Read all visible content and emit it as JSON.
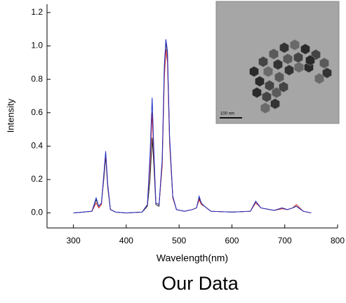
{
  "chart_data": {
    "type": "line",
    "x_label": "Wavelength(nm)",
    "y_label": "Intensity",
    "x": [
      300,
      335,
      343,
      348,
      353,
      358,
      361,
      365,
      370,
      380,
      400,
      430,
      440,
      445,
      449,
      452,
      456,
      462,
      468,
      472,
      475,
      478,
      482,
      488,
      495,
      510,
      525,
      533,
      538,
      542,
      548,
      560,
      600,
      635,
      645,
      655,
      680,
      695,
      705,
      715,
      722,
      735,
      750
    ],
    "series": [
      {
        "color": "#222222",
        "values": [
          0,
          0.01,
          0.08,
          0.04,
          0.06,
          0.22,
          0.34,
          0.15,
          0.02,
          0.005,
          0,
          0.005,
          0.04,
          0.2,
          0.45,
          0.3,
          0.05,
          0.04,
          0.3,
          0.85,
          1.03,
          0.95,
          0.45,
          0.1,
          0.02,
          0.01,
          0.02,
          0.03,
          0.09,
          0.06,
          0.04,
          0.01,
          0.005,
          0.01,
          0.07,
          0.03,
          0.015,
          0.03,
          0.02,
          0.03,
          0.04,
          0.01,
          0
        ]
      },
      {
        "color": "#cc2222",
        "values": [
          0,
          0.01,
          0.06,
          0.03,
          0.05,
          0.24,
          0.36,
          0.16,
          0.02,
          0.005,
          0,
          0.005,
          0.05,
          0.3,
          0.6,
          0.35,
          0.06,
          0.05,
          0.28,
          0.8,
          0.98,
          0.9,
          0.42,
          0.09,
          0.02,
          0.01,
          0.02,
          0.03,
          0.08,
          0.05,
          0.04,
          0.01,
          0.005,
          0.01,
          0.06,
          0.03,
          0.015,
          0.025,
          0.02,
          0.03,
          0.05,
          0.01,
          0
        ]
      },
      {
        "color": "#2233cc",
        "values": [
          0,
          0.01,
          0.09,
          0.04,
          0.06,
          0.25,
          0.37,
          0.17,
          0.02,
          0.005,
          0,
          0.005,
          0.05,
          0.35,
          0.69,
          0.4,
          0.06,
          0.05,
          0.32,
          0.88,
          1.04,
          0.97,
          0.46,
          0.1,
          0.02,
          0.01,
          0.02,
          0.03,
          0.1,
          0.06,
          0.04,
          0.01,
          0.005,
          0.01,
          0.07,
          0.03,
          0.015,
          0.03,
          0.02,
          0.03,
          0.04,
          0.01,
          0
        ]
      }
    ],
    "xlim": [
      250,
      800
    ],
    "xticks": [
      300,
      400,
      500,
      600,
      700,
      800
    ],
    "ylim": [
      -0.09,
      1.25
    ],
    "yticks": [
      {
        "value": 0,
        "label": "0.0"
      },
      0.2,
      0.4,
      0.6,
      0.8,
      {
        "value": 1,
        "label": "1.0"
      },
      1.2
    ]
  },
  "inset": {
    "scale_label": "100 nm"
  },
  "caption": "Our Data"
}
